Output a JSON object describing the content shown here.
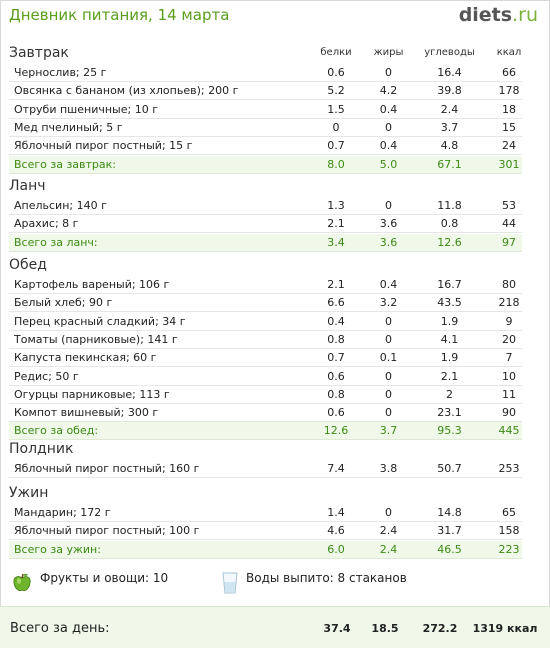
{
  "header": {
    "title": "Дневник питания, 14 марта",
    "logo_main": "diets",
    "logo_suffix": ".ru"
  },
  "columns": [
    "белки",
    "жиры",
    "углеводы",
    "ккал"
  ],
  "meals": [
    {
      "name": "Завтрак",
      "items": [
        {
          "name": "Чернослив; 25 г",
          "p": "0.6",
          "f": "0",
          "c": "16.4",
          "kcal": "66"
        },
        {
          "name": "Овсянка с бананом (из хлопьев); 200 г",
          "p": "5.2",
          "f": "4.2",
          "c": "39.8",
          "kcal": "178"
        },
        {
          "name": "Отруби пшеничные; 10 г",
          "p": "1.5",
          "f": "0.4",
          "c": "2.4",
          "kcal": "18"
        },
        {
          "name": "Мед пчелиный; 5 г",
          "p": "0",
          "f": "0",
          "c": "3.7",
          "kcal": "15"
        },
        {
          "name": "Яблочный пирог постный; 15 г",
          "p": "0.7",
          "f": "0.4",
          "c": "4.8",
          "kcal": "24"
        }
      ],
      "total": {
        "name": "Всего за завтрак:",
        "p": "8.0",
        "f": "5.0",
        "c": "67.1",
        "kcal": "301"
      }
    },
    {
      "name": "Ланч",
      "items": [
        {
          "name": "Апельсин; 140 г",
          "p": "1.3",
          "f": "0",
          "c": "11.8",
          "kcal": "53"
        },
        {
          "name": "Арахис; 8 г",
          "p": "2.1",
          "f": "3.6",
          "c": "0.8",
          "kcal": "44"
        }
      ],
      "total": {
        "name": "Всего за ланч:",
        "p": "3.4",
        "f": "3.6",
        "c": "12.6",
        "kcal": "97"
      }
    },
    {
      "name": "Обед",
      "items": [
        {
          "name": "Картофель вареный; 106 г",
          "p": "2.1",
          "f": "0.4",
          "c": "16.7",
          "kcal": "80"
        },
        {
          "name": "Белый хлеб; 90 г",
          "p": "6.6",
          "f": "3.2",
          "c": "43.5",
          "kcal": "218"
        },
        {
          "name": "Перец красный сладкий; 34 г",
          "p": "0.4",
          "f": "0",
          "c": "1.9",
          "kcal": "9"
        },
        {
          "name": "Томаты (парниковые); 141 г",
          "p": "0.8",
          "f": "0",
          "c": "4.1",
          "kcal": "20"
        },
        {
          "name": "Капуста пекинская; 60 г",
          "p": "0.7",
          "f": "0.1",
          "c": "1.9",
          "kcal": "7"
        },
        {
          "name": "Редис; 50 г",
          "p": "0.6",
          "f": "0",
          "c": "2.1",
          "kcal": "10"
        },
        {
          "name": "Огурцы парниковые; 113 г",
          "p": "0.8",
          "f": "0",
          "c": "2",
          "kcal": "11"
        },
        {
          "name": "Компот вишневый; 300 г",
          "p": "0.6",
          "f": "0",
          "c": "23.1",
          "kcal": "90"
        }
      ],
      "total": {
        "name": "Всего за обед:",
        "p": "12.6",
        "f": "3.7",
        "c": "95.3",
        "kcal": "445"
      }
    },
    {
      "name": "Полдник",
      "items": [
        {
          "name": "Яблочный пирог постный; 160 г",
          "p": "7.4",
          "f": "3.8",
          "c": "50.7",
          "kcal": "253"
        }
      ],
      "total": null
    },
    {
      "name": "Ужин",
      "items": [
        {
          "name": "Мандарин; 172 г",
          "p": "1.4",
          "f": "0",
          "c": "14.8",
          "kcal": "65"
        },
        {
          "name": "Яблочный пирог постный; 100 г",
          "p": "4.6",
          "f": "2.4",
          "c": "31.7",
          "kcal": "158"
        }
      ],
      "total": {
        "name": "Всего за ужин:",
        "p": "6.0",
        "f": "2.4",
        "c": "46.5",
        "kcal": "223"
      }
    }
  ],
  "summary": {
    "fruits": "Фрукты и овощи: 10",
    "water": "Воды выпито: 8 стаканов"
  },
  "day_total": {
    "label": "Всего за день:",
    "p": "37.4",
    "f": "18.5",
    "c": "272.2",
    "kcal": "1319 ккал"
  },
  "colors": {
    "accent": "#5a9e1e",
    "total_bg": "#eff8e9",
    "total_text": "#3d8a13"
  }
}
